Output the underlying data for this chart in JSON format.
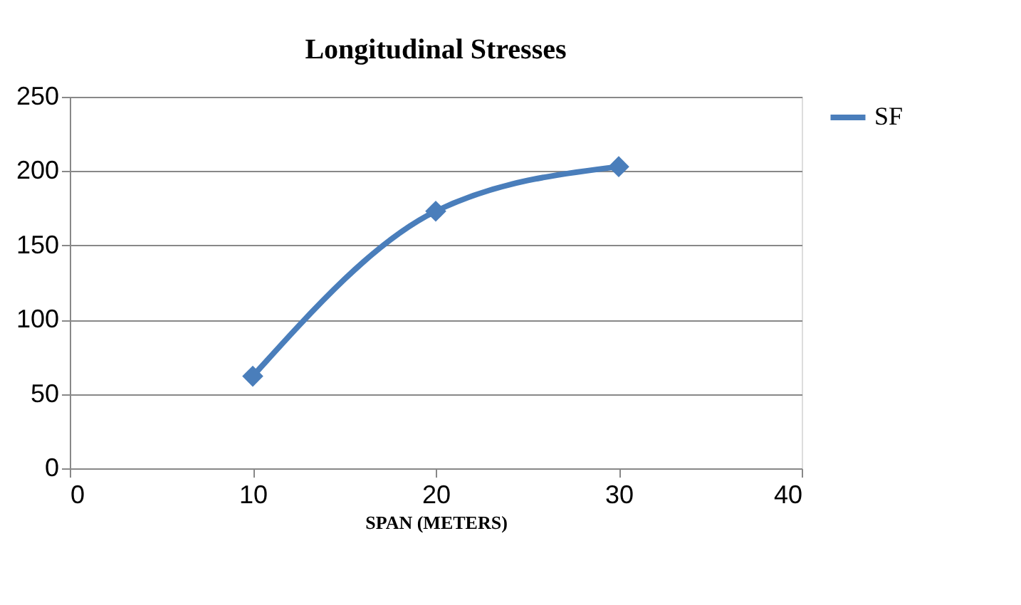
{
  "chart_data": {
    "type": "line",
    "title": "Longitudinal Stresses",
    "xlabel": "SPAN (METERS)",
    "x": [
      10,
      20,
      30
    ],
    "series": [
      {
        "name": "SF",
        "color": "#4a7ebb",
        "values": [
          62,
          173,
          203
        ]
      }
    ],
    "xlim": [
      0,
      40
    ],
    "xticks": [
      0,
      10,
      20,
      30,
      40
    ],
    "ylim": [
      0,
      250
    ],
    "yticks": [
      0,
      50,
      100,
      150,
      200,
      250
    ],
    "grid": "y",
    "legend": "right",
    "marker": "diamond",
    "line_style": "solid"
  }
}
